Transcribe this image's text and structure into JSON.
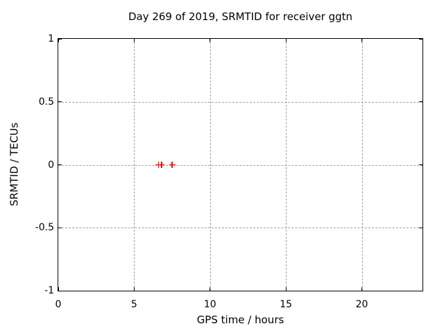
{
  "chart_data": {
    "type": "scatter",
    "title": "Day 269 of 2019, SRMTID for receiver ggtn",
    "xlabel": "GPS time / hours",
    "ylabel": "SRMTID / TECUs",
    "xlim": [
      0,
      24
    ],
    "ylim": [
      -1,
      1
    ],
    "xticks": [
      0,
      5,
      10,
      15,
      20
    ],
    "xtick_labels": [
      "0",
      "5",
      "10",
      "15",
      "20"
    ],
    "yticks": [
      -1,
      -0.5,
      0,
      0.5,
      1
    ],
    "ytick_labels": [
      "-1",
      "-0.5",
      "0",
      "0.5",
      "1"
    ],
    "grid": true,
    "legend_position": "none",
    "colors": {
      "axis": "#000000",
      "grid": "#a0a0a0",
      "background": "#ffffff",
      "marker": "#ff0000"
    },
    "series": [
      {
        "name": "SRMTID",
        "marker": "plus",
        "color": "#ff0000",
        "points": [
          {
            "x": 6.6,
            "y": 0.0
          },
          {
            "x": 6.8,
            "y": 0.0
          },
          {
            "x": 7.5,
            "y": 0.0
          }
        ]
      }
    ]
  }
}
